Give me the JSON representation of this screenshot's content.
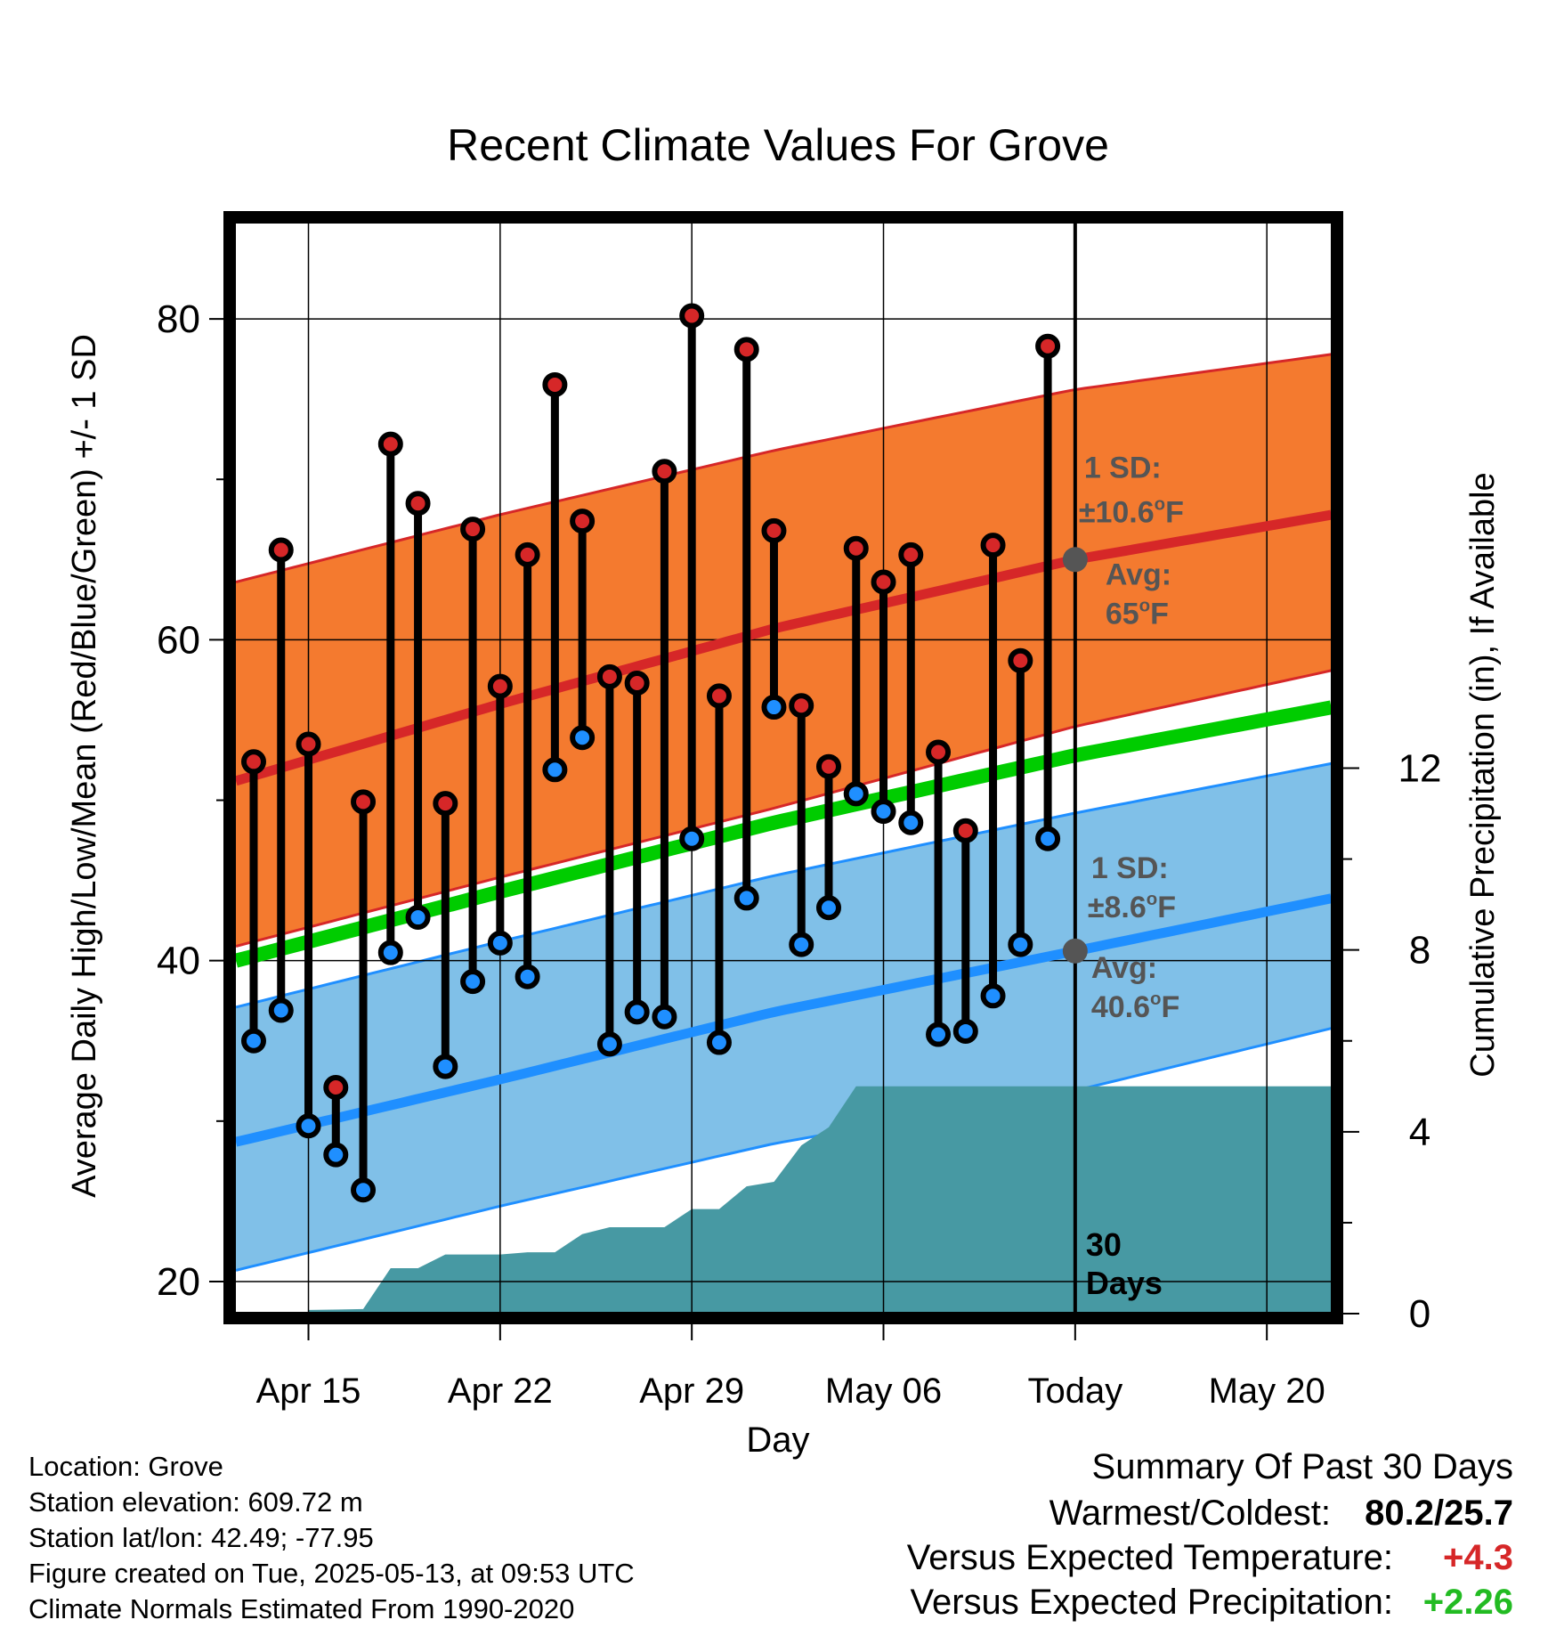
{
  "chart_data": {
    "type": "line",
    "title": "Recent Climate Values For Grove",
    "xlabel": "Day",
    "ylabel": "Average Daily High/Low/Mean (Red/Blue/Green) +/- 1 SD",
    "y2label": "Cumulative Precipitation (in), If Available",
    "ylim": [
      18,
      86
    ],
    "y2lim": [
      0,
      24
    ],
    "xlim": [
      0.35,
      40.4
    ],
    "y_ticks": [
      "20",
      "40",
      "60",
      "80"
    ],
    "y2_ticks": [
      "0",
      "4",
      "8",
      "12"
    ],
    "x_ticks": [
      {
        "label": "Apr 15",
        "day": 3
      },
      {
        "label": "Apr 22",
        "day": 10
      },
      {
        "label": "Apr 29",
        "day": 17
      },
      {
        "label": "May 06",
        "day": 24
      },
      {
        "label": "Today",
        "day": 31
      },
      {
        "label": "May 20",
        "day": 38
      }
    ],
    "today_day": 31,
    "today_label": [
      "30",
      "Days"
    ],
    "normals": {
      "day": [
        0.35,
        10,
        20,
        31,
        40.4
      ],
      "high_avg": [
        51.2,
        56.0,
        60.7,
        65.0,
        67.8
      ],
      "high_upper": [
        63.6,
        67.8,
        71.8,
        75.6,
        77.8
      ],
      "high_lower": [
        40.9,
        45.2,
        49.5,
        54.6,
        58.1
      ],
      "mean_avg": [
        40.0,
        44.3,
        48.6,
        52.8,
        55.8
      ],
      "low_avg": [
        28.7,
        32.6,
        36.8,
        40.6,
        43.9
      ],
      "low_upper": [
        37.1,
        41.2,
        45.3,
        49.2,
        52.3
      ],
      "low_lower": [
        20.7,
        24.7,
        28.6,
        31.9,
        35.8
      ],
      "high_avg_label": [
        "Avg:",
        "65",
        "F"
      ],
      "high_sd_label": [
        "1 SD:",
        "±10.6",
        "F"
      ],
      "low_avg_label": [
        "Avg:",
        "40.6",
        "F"
      ],
      "low_sd_label": [
        "1 SD:",
        "±8.6",
        "F"
      ]
    },
    "series": [
      {
        "name": "High",
        "color": "#d62728",
        "values": [
          52.4,
          65.6,
          53.5,
          32.1,
          49.9,
          72.2,
          68.5,
          49.8,
          66.9,
          57.1,
          65.3,
          75.9,
          67.4,
          57.7,
          57.3,
          70.5,
          80.2,
          56.5,
          78.1,
          66.8,
          55.9,
          52.1,
          65.7,
          63.6,
          65.3,
          53.0,
          48.1,
          65.9,
          58.7,
          78.3
        ]
      },
      {
        "name": "Low",
        "color": "#1f8fff",
        "values": [
          35.0,
          36.9,
          29.7,
          27.9,
          25.7,
          40.5,
          42.7,
          33.4,
          38.7,
          41.1,
          39.0,
          51.9,
          53.9,
          34.8,
          36.8,
          36.5,
          47.6,
          34.9,
          43.9,
          55.8,
          41.0,
          43.3,
          50.4,
          49.3,
          48.6,
          35.4,
          35.6,
          37.8,
          41.0,
          47.6
        ]
      }
    ],
    "precip": {
      "day": [
        3,
        5,
        6,
        7,
        8,
        9,
        10,
        11,
        12,
        13,
        14,
        15,
        16,
        17,
        18,
        19,
        20,
        21,
        22,
        23,
        24,
        25,
        26,
        27,
        28,
        29,
        30,
        31,
        32,
        33,
        34,
        35,
        36,
        37,
        38,
        39,
        40.4
      ],
      "values": [
        0.08,
        0.1,
        1.0,
        1.0,
        1.3,
        1.3,
        1.3,
        1.35,
        1.35,
        1.75,
        1.9,
        1.9,
        1.9,
        2.3,
        2.3,
        2.8,
        2.9,
        3.7,
        4.1,
        5.0,
        5.0,
        5.0,
        5.0,
        5.0,
        5.0,
        5.0,
        5.0,
        5.0,
        5.0,
        5.0,
        5.0,
        5.0,
        5.0,
        5.0,
        5.0,
        5.0,
        5.0
      ]
    },
    "precip_top": 5.9,
    "colors": {
      "high_band": "#f47a2f",
      "high_edge": "#d62728",
      "high_avg": "#d62728",
      "mean": "#00cc00",
      "low_band": "#80c0e8",
      "low_edge": "#1f8fff",
      "low_avg": "#1f8fff",
      "precip": "#4799a3",
      "label_gray": "#555555"
    }
  },
  "footer": {
    "location": "Location: Grove",
    "elevation": "Station elevation: 609.72 m",
    "latlon": "Station lat/lon: 42.49; -77.95",
    "created": "Figure created on Tue, 2025-05-13, at 09:53 UTC",
    "normals": "Climate Normals Estimated From 1990-2020"
  },
  "summary": {
    "heading": "Summary Of Past 30 Days",
    "warm_cold_label": "Warmest/Coldest:",
    "warm_cold_value": "80.2/25.7",
    "temp_label": "Versus Expected Temperature:",
    "temp_value": "+4.3",
    "precip_label": "Versus Expected Precipitation:",
    "precip_value": "+2.26",
    "temp_color": "#d62728",
    "precip_color": "#22bb22"
  }
}
